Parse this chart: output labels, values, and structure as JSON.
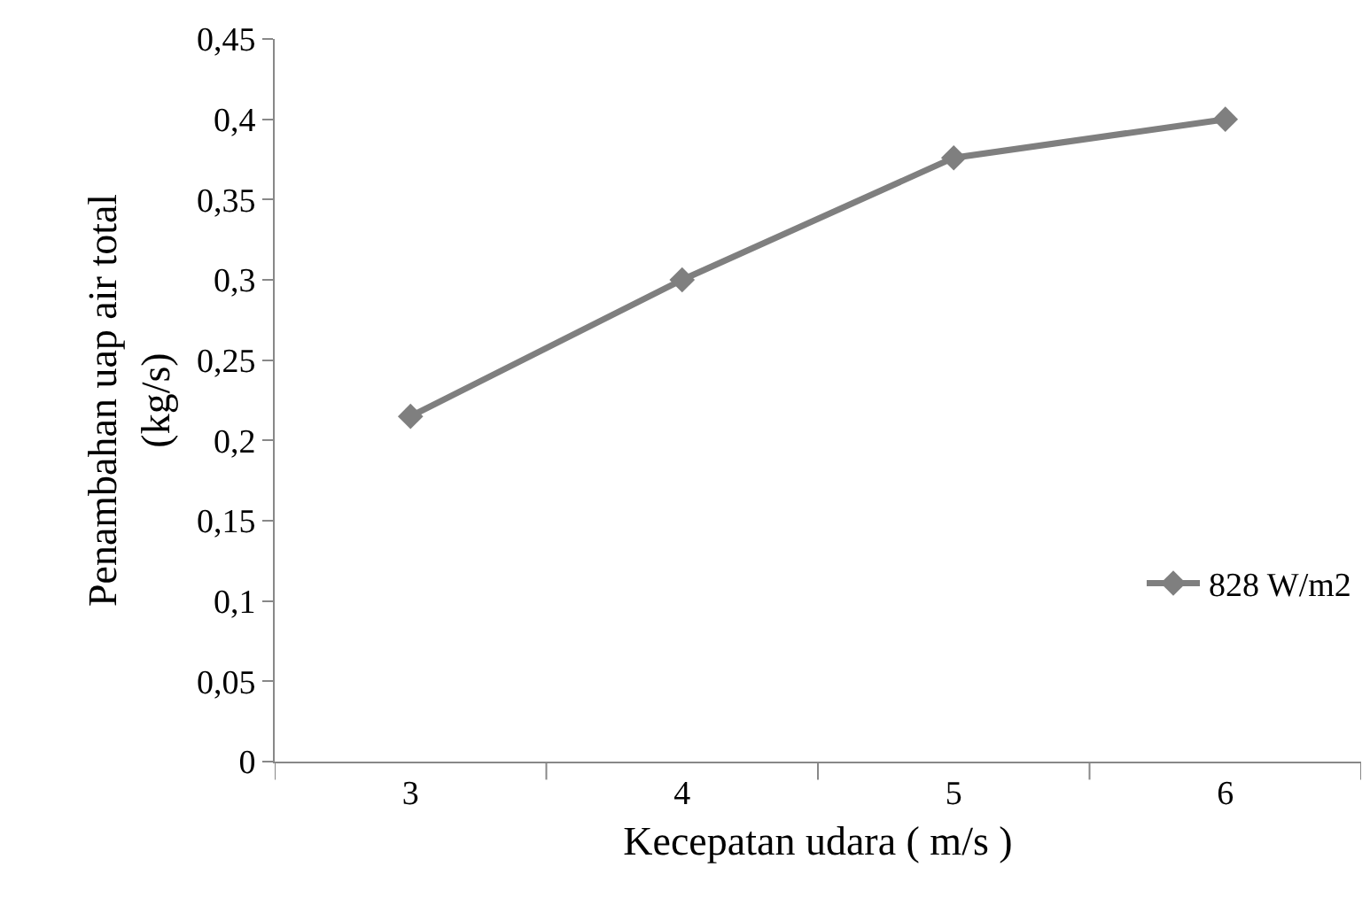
{
  "chart_data": {
    "type": "line",
    "xlabel": "Kecepatan udara ( m/s )",
    "ylabel": "Penambahan uap air total (kg/s)",
    "categories": [
      "3",
      "4",
      "5",
      "6"
    ],
    "series": [
      {
        "name": "828 W/m2",
        "color": "#7f7f7f",
        "values": [
          0.215,
          0.3,
          0.376,
          0.4
        ]
      }
    ],
    "ylim": [
      0,
      0.45
    ],
    "yticks": [
      0,
      {
        "value": 0.05,
        "label": "0,05"
      },
      {
        "value": 0.1,
        "label": "0,1"
      },
      {
        "value": 0.15,
        "label": "0,15"
      },
      {
        "value": 0.2,
        "label": "0,2"
      },
      {
        "value": 0.25,
        "label": "0,25"
      },
      {
        "value": 0.3,
        "label": "0,3"
      },
      {
        "value": 0.35,
        "label": "0,35"
      },
      {
        "value": 0.4,
        "label": "0,4"
      },
      {
        "value": 0.45,
        "label": "0,45"
      }
    ],
    "marker": "diamond",
    "line_style": "solid",
    "legend": "bottom right"
  }
}
